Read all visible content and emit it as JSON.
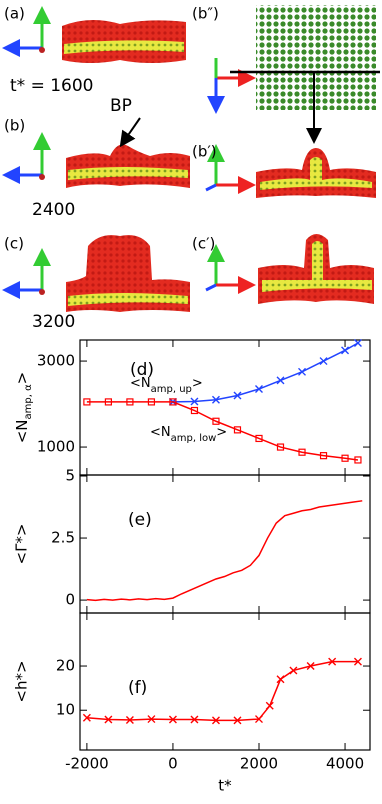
{
  "snapshots": {
    "labels": [
      "(a)",
      "(b″)",
      "(b)",
      "(b′)",
      "(c)",
      "(c′)"
    ],
    "times": [
      "t* = 1600",
      "2400",
      "3200"
    ],
    "annotation": "BP"
  },
  "chart_data": [
    {
      "type": "line",
      "panel_label": "(d)",
      "ylabel_parts": [
        "<N",
        "amp, α",
        ">"
      ],
      "xlim": [
        -2160,
        4580
      ],
      "xticks": [
        -2000,
        0,
        2000,
        4000
      ],
      "ylim": [
        350,
        3490
      ],
      "yticks": [
        1000,
        3000
      ],
      "x": [
        -2000,
        -1500,
        -1000,
        -500,
        0,
        500,
        1000,
        1500,
        2000,
        2500,
        3000,
        3500,
        4000,
        4300
      ],
      "series": [
        {
          "name_parts": [
            "<N",
            "amp, up",
            ">"
          ],
          "color": "#2244ff",
          "marker": "x",
          "values": [
            null,
            null,
            null,
            null,
            2050,
            2060,
            2100,
            2200,
            2350,
            2550,
            2750,
            3000,
            3250,
            3420
          ]
        },
        {
          "name_parts": [
            "<N",
            "amp, low",
            ">"
          ],
          "color": "#ff0000",
          "marker": "square",
          "values": [
            2050,
            2050,
            2050,
            2050,
            2050,
            1850,
            1600,
            1400,
            1200,
            1000,
            880,
            800,
            740,
            700
          ]
        }
      ]
    },
    {
      "type": "line",
      "panel_label": "(e)",
      "ylabel": "<Γ*>",
      "xlim": [
        -2160,
        4580
      ],
      "xticks": [
        -2000,
        0,
        2000,
        4000
      ],
      "ylim": [
        -0.52,
        5.04
      ],
      "yticks": [
        0,
        2.5,
        5
      ],
      "x": [
        -2000,
        -1800,
        -1600,
        -1400,
        -1200,
        -1000,
        -800,
        -600,
        -400,
        -200,
        0,
        200,
        400,
        600,
        800,
        1000,
        1200,
        1400,
        1600,
        1800,
        2000,
        2200,
        2400,
        2600,
        2800,
        3000,
        3200,
        3400,
        3600,
        3800,
        4000,
        4200,
        4400
      ],
      "series": [
        {
          "color": "#ff0000",
          "marker": "none",
          "values": [
            0.02,
            -0.01,
            0.03,
            0.0,
            0.04,
            0.01,
            0.05,
            0.02,
            0.06,
            0.03,
            0.08,
            0.25,
            0.4,
            0.55,
            0.7,
            0.85,
            0.95,
            1.1,
            1.2,
            1.4,
            1.8,
            2.5,
            3.1,
            3.4,
            3.5,
            3.6,
            3.65,
            3.75,
            3.8,
            3.85,
            3.9,
            3.95,
            4.0
          ]
        }
      ]
    },
    {
      "type": "line",
      "panel_label": "(f)",
      "ylabel": "<h*>",
      "xlabel": "t*",
      "xlim": [
        -2160,
        4580
      ],
      "xticks": [
        -2000,
        0,
        2000,
        4000
      ],
      "ylim": [
        1,
        32
      ],
      "yticks": [
        10,
        20
      ],
      "x": [
        -2000,
        -1500,
        -1000,
        -500,
        0,
        500,
        1000,
        1500,
        2000,
        2250,
        2500,
        2800,
        3200,
        3700,
        4300
      ],
      "series": [
        {
          "color": "#ff0000",
          "marker": "x",
          "values": [
            8.3,
            7.9,
            7.8,
            8.0,
            7.9,
            7.9,
            7.7,
            7.7,
            8.0,
            11,
            17,
            19,
            20,
            21,
            21
          ]
        }
      ]
    }
  ]
}
